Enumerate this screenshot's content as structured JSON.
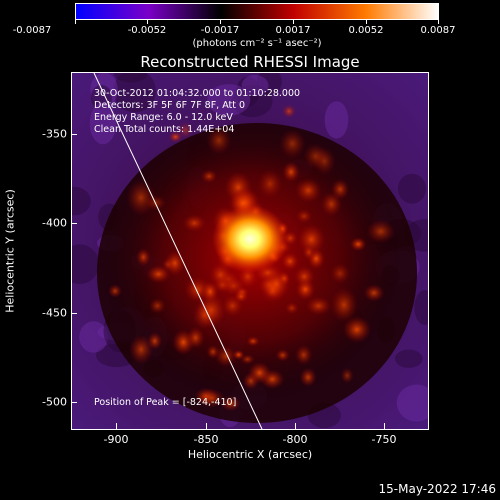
{
  "colorbar": {
    "tick_labels": [
      "-0.0087",
      "-0.0052",
      "-0.0017",
      "0.0017",
      "0.0052",
      "0.0087"
    ],
    "units": "(photons cm⁻² s⁻¹ asec⁻²)",
    "colors": [
      "#0000ff",
      "#7a00c8",
      "#000000",
      "#c00000",
      "#ff7a00",
      "#ffffff"
    ]
  },
  "title": "Reconstructed RHESSI Image",
  "info": {
    "time_range": "30-Oct-2012 01:04:32.000 to 01:10:28.000",
    "detectors": "Detectors: 3F 5F 6F 7F 8F, Att 0",
    "energy_range": "Energy Range: 6.0 - 12.0 keV",
    "algorithm": "Clean    Total counts: 1.44E+04"
  },
  "peak_label": "Position of Peak = [-824,-410]",
  "axes": {
    "xlabel": "Heliocentric X (arcsec)",
    "ylabel": "Heliocentric Y (arcsec)",
    "xticks": [
      "-900",
      "-850",
      "-800",
      "-750"
    ],
    "yticks": [
      "-350",
      "-400",
      "-450",
      "-500"
    ]
  },
  "timestamp": "15-May-2022 17:46"
}
